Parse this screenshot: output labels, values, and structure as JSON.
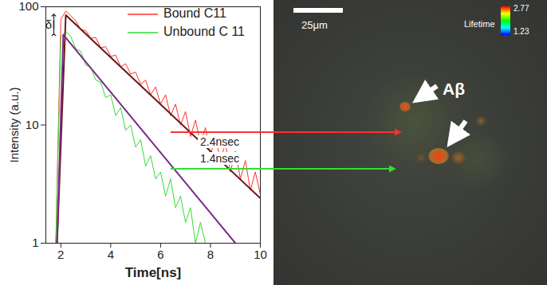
{
  "chart_data": {
    "type": "line",
    "x_label": "Time[ns]",
    "y_label": "Intensity (a.u.)",
    "log": "y",
    "legend": "top-right",
    "xlim": [
      1.4,
      10
    ],
    "ylim": [
      1,
      100
    ],
    "xticks": [
      2,
      4,
      6,
      8,
      10
    ],
    "yticks": [
      1,
      10,
      100
    ],
    "x": [
      1.8,
      2.0,
      2.2,
      2.4,
      2.6,
      2.8,
      3.0,
      3.2,
      3.4,
      3.6,
      3.8,
      4.0,
      4.2,
      4.4,
      4.6,
      4.8,
      5.0,
      5.2,
      5.4,
      5.6,
      5.8,
      6.0,
      6.2,
      6.4,
      6.6,
      6.8,
      7.0,
      7.2,
      7.4,
      7.6,
      7.8,
      8.0,
      8.2,
      8.4,
      8.6,
      8.8,
      9.0,
      9.2,
      9.4,
      9.6,
      9.8,
      10.0
    ],
    "series": [
      {
        "name": "Bound C11",
        "color": "#ff3030",
        "values": [
          1,
          78,
          92,
          84,
          76,
          64,
          63,
          54,
          55,
          45,
          46,
          38,
          39,
          31,
          33,
          27,
          28,
          22,
          24,
          18,
          21,
          15,
          18,
          12,
          15,
          10,
          13,
          8,
          11,
          7,
          9.5,
          5.5,
          8,
          5,
          7,
          4,
          6,
          3.5,
          5,
          2.8,
          4,
          2.6
        ],
        "fit": {
          "x": [
            1.85,
            2.2,
            10
          ],
          "values": [
            1,
            85,
            2.4
          ],
          "color": "#6e1616",
          "label": "2.4nsec"
        }
      },
      {
        "name": "Unbound C 11",
        "color": "#33dd33",
        "values": [
          1,
          55,
          62,
          56,
          44,
          42,
          32,
          31,
          24,
          23,
          17,
          18,
          12,
          14,
          9,
          10,
          6.5,
          7.5,
          4.5,
          5.5,
          3.5,
          4,
          2.5,
          3.5,
          2,
          2.5,
          1.5,
          2,
          1,
          1.5,
          1,
          1,
          null,
          1,
          null,
          null,
          null,
          null,
          null,
          null,
          null,
          null
        ],
        "fit": {
          "x": [
            1.85,
            2.1,
            9
          ],
          "values": [
            1,
            58,
            1
          ],
          "color": "#7a2a8a",
          "label": "1.4nsec"
        }
      }
    ],
    "annotations": [
      "δI"
    ]
  },
  "image": {
    "scale_bar": "25μm",
    "colorbar": {
      "label": "Lifetime",
      "range": [
        1.23,
        2.77
      ]
    },
    "annotations": [
      "Aβ"
    ]
  }
}
